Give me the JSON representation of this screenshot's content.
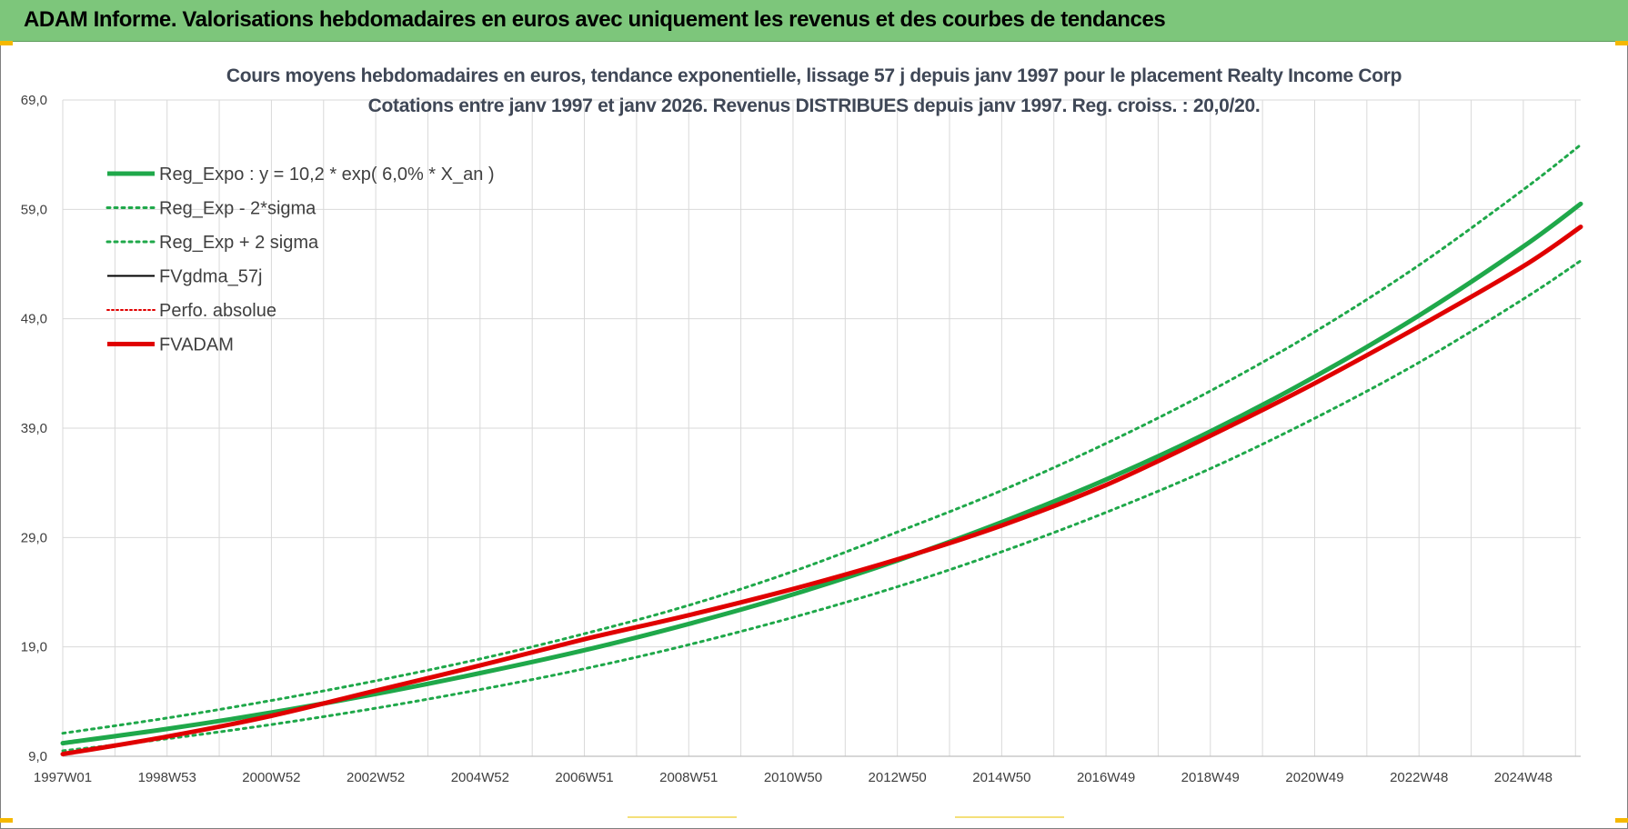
{
  "header": {
    "title": "ADAM Informe. Valorisations hebdomadaires en euros avec uniquement les revenus et des courbes de tendances",
    "background": "#7dc67b"
  },
  "chart_data": {
    "type": "line",
    "title": "Cours moyens hebdomadaires en euros, tendance exponentielle, lissage 57 j depuis janv 1997 pour le placement Realty Income Corp",
    "subtitle": "Cotations entre janv 1997 et janv 2026. Revenus DISTRIBUES depuis janv 1997. Reg. croiss. : 20,0/20.",
    "xlabel": "",
    "ylabel": "",
    "ylim": [
      9.0,
      69.0
    ],
    "yticks": [
      "9,0",
      "19,0",
      "29,0",
      "39,0",
      "49,0",
      "59,0",
      "69,0"
    ],
    "xlim": [
      1997.0,
      2026.1
    ],
    "xticks": [
      "1997W01",
      "1998W53",
      "2000W52",
      "2002W52",
      "2004W52",
      "2006W51",
      "2008W51",
      "2010W50",
      "2012W50",
      "2014W50",
      "2016W49",
      "2018W49",
      "2020W49",
      "2022W48",
      "2024W48"
    ],
    "xtick_years": [
      1997.0,
      1999.0,
      2001.0,
      2003.0,
      2005.0,
      2007.0,
      2009.0,
      2011.0,
      2013.0,
      2015.0,
      2017.0,
      2019.0,
      2021.0,
      2023.0,
      2025.0
    ],
    "grid": true,
    "legend_position": "top-left",
    "x": [
      1997.0,
      1999.0,
      2001.0,
      2003.0,
      2005.0,
      2007.0,
      2009.0,
      2011.0,
      2013.0,
      2015.0,
      2017.0,
      2019.0,
      2021.0,
      2023.0,
      2025.0,
      2026.1
    ],
    "series": [
      {
        "name": "Reg_Expo : y = 10,2 * exp( 6,0% *  X_an )",
        "color": "#1fa84a",
        "style": "solid",
        "width": 5,
        "values": [
          10.2,
          11.5,
          13.0,
          14.7,
          16.6,
          18.7,
          21.1,
          23.8,
          26.9,
          30.4,
          34.3,
          38.7,
          43.7,
          49.3,
          55.6,
          59.5
        ]
      },
      {
        "name": "Reg_Exp - 2*sigma",
        "color": "#1fa84a",
        "style": "dotted",
        "width": 3,
        "values": [
          9.5,
          10.6,
          11.9,
          13.4,
          15.1,
          17.0,
          19.2,
          21.7,
          24.5,
          27.7,
          31.3,
          35.3,
          39.9,
          45.0,
          50.8,
          54.3
        ]
      },
      {
        "name": "Reg_Exp + 2 sigma",
        "color": "#1fa84a",
        "style": "dotted",
        "width": 3,
        "values": [
          11.1,
          12.5,
          14.1,
          15.9,
          17.9,
          20.2,
          22.8,
          25.9,
          29.5,
          33.3,
          37.6,
          42.4,
          47.8,
          53.9,
          60.8,
          64.9
        ]
      },
      {
        "name": "FVgdma_57j",
        "color": "#000000",
        "style": "solid",
        "width": 2,
        "values": [
          9.2,
          10.8,
          12.7,
          15.0,
          17.3,
          19.7,
          21.9,
          24.3,
          27.0,
          30.1,
          33.8,
          38.3,
          43.1,
          48.3,
          53.8,
          57.4
        ]
      },
      {
        "name": "Perfo. absolue",
        "color": "#e00000",
        "style": "dotted",
        "width": 2,
        "values": [
          9.2,
          10.8,
          12.7,
          15.0,
          17.3,
          19.7,
          21.9,
          24.3,
          27.0,
          30.1,
          33.8,
          38.3,
          43.1,
          48.3,
          53.8,
          57.4
        ]
      },
      {
        "name": "FVADAM",
        "color": "#e00000",
        "style": "solid",
        "width": 5,
        "values": [
          9.2,
          10.8,
          12.7,
          15.0,
          17.3,
          19.7,
          21.9,
          24.3,
          27.0,
          30.1,
          33.8,
          38.3,
          43.1,
          48.3,
          53.8,
          57.4
        ]
      }
    ]
  }
}
